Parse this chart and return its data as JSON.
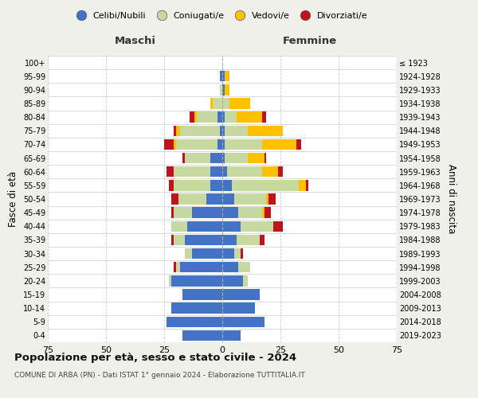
{
  "age_groups": [
    "0-4",
    "5-9",
    "10-14",
    "15-19",
    "20-24",
    "25-29",
    "30-34",
    "35-39",
    "40-44",
    "45-49",
    "50-54",
    "55-59",
    "60-64",
    "65-69",
    "70-74",
    "75-79",
    "80-84",
    "85-89",
    "90-94",
    "95-99",
    "100+"
  ],
  "birth_years": [
    "2019-2023",
    "2014-2018",
    "2009-2013",
    "2004-2008",
    "1999-2003",
    "1994-1998",
    "1989-1993",
    "1984-1988",
    "1979-1983",
    "1974-1978",
    "1969-1973",
    "1964-1968",
    "1959-1963",
    "1954-1958",
    "1949-1953",
    "1944-1948",
    "1939-1943",
    "1934-1938",
    "1929-1933",
    "1924-1928",
    "≤ 1923"
  ],
  "maschi": {
    "celibi": [
      17,
      24,
      22,
      17,
      22,
      18,
      13,
      16,
      15,
      13,
      7,
      5,
      5,
      5,
      2,
      1,
      2,
      0,
      0,
      1,
      0
    ],
    "coniugati": [
      0,
      0,
      0,
      0,
      1,
      2,
      3,
      5,
      7,
      8,
      12,
      16,
      16,
      11,
      18,
      17,
      9,
      4,
      1,
      0,
      0
    ],
    "vedovi": [
      0,
      0,
      0,
      0,
      0,
      0,
      0,
      0,
      0,
      0,
      0,
      0,
      0,
      0,
      1,
      2,
      1,
      1,
      0,
      0,
      0
    ],
    "divorziati": [
      0,
      0,
      0,
      0,
      0,
      1,
      0,
      1,
      0,
      1,
      3,
      2,
      3,
      1,
      4,
      1,
      2,
      0,
      0,
      0,
      0
    ]
  },
  "femmine": {
    "nubili": [
      8,
      18,
      14,
      16,
      9,
      7,
      5,
      6,
      8,
      7,
      5,
      4,
      2,
      1,
      1,
      1,
      1,
      0,
      1,
      1,
      0
    ],
    "coniugate": [
      0,
      0,
      0,
      0,
      2,
      5,
      3,
      10,
      14,
      10,
      14,
      29,
      15,
      10,
      16,
      10,
      5,
      3,
      0,
      0,
      0
    ],
    "vedove": [
      0,
      0,
      0,
      0,
      0,
      0,
      0,
      0,
      0,
      1,
      1,
      3,
      7,
      7,
      15,
      15,
      11,
      9,
      2,
      2,
      0
    ],
    "divorziate": [
      0,
      0,
      0,
      0,
      0,
      0,
      1,
      2,
      4,
      3,
      3,
      1,
      2,
      1,
      2,
      0,
      2,
      0,
      0,
      0,
      0
    ]
  },
  "colors": {
    "celibi": "#4472c4",
    "coniugati": "#c5d9a0",
    "vedovi": "#ffc000",
    "divorziati": "#c0141c"
  },
  "xlim": 75,
  "title_main": "Popolazione per età, sesso e stato civile - 2024",
  "title_sub": "COMUNE DI ARBA (PN) - Dati ISTAT 1° gennaio 2024 - Elaborazione TUTTITALIA.IT",
  "ylabel_left": "Fasce di età",
  "ylabel_right": "Anni di nascita",
  "xlabel_left": "Maschi",
  "xlabel_right": "Femmine",
  "bg_color": "#f0f0ea",
  "plot_bg": "#ffffff",
  "legend_labels": [
    "Celibi/Nubili",
    "Coniugati/e",
    "Vedovi/e",
    "Divorziati/e"
  ]
}
